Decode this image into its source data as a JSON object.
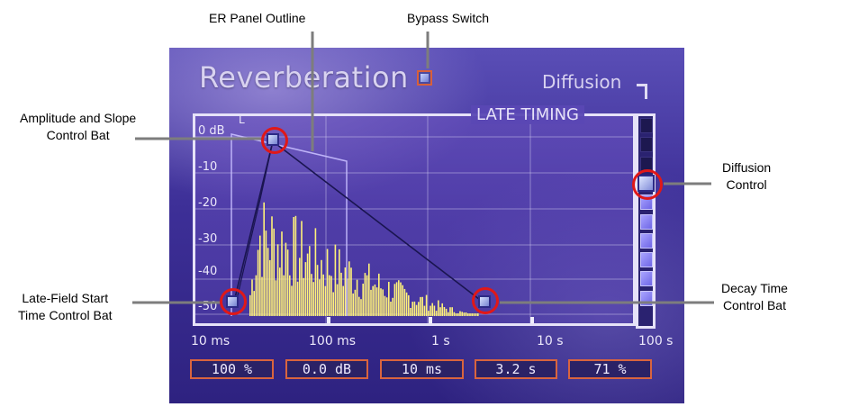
{
  "callouts": {
    "er_panel_outline": "ER Panel Outline",
    "bypass_switch": "Bypass Switch",
    "amplitude": "Amplitude and Slope\nControl Bat",
    "diffusion_control": "Diffusion\nControl",
    "late_field": "Late-Field Start\nTime Control Bat",
    "decay_time": "Decay Time\nControl Bat"
  },
  "panel": {
    "title": "Reverberation",
    "diffusion_label": "Diffusion",
    "late_timing_label": "LATE TIMING",
    "er_marker": "L"
  },
  "graph": {
    "y_labels": [
      "0 dB",
      "-10",
      "-20",
      "-30",
      "-40",
      "-50"
    ],
    "x_labels": [
      "10 ms",
      "100 ms",
      "1 s",
      "10 s",
      "100 s"
    ]
  },
  "diffusion": {
    "level": 0.71,
    "cells": 10
  },
  "values": [
    "100 %",
    "0.0 dB",
    "10 ms",
    "3.2 s",
    "71 %"
  ],
  "colors": {
    "accent_orange": "#d9643e",
    "callout_red": "#e01818",
    "spectrum_yellow": "#fff27a",
    "panel_purple": "#3d2f97"
  }
}
